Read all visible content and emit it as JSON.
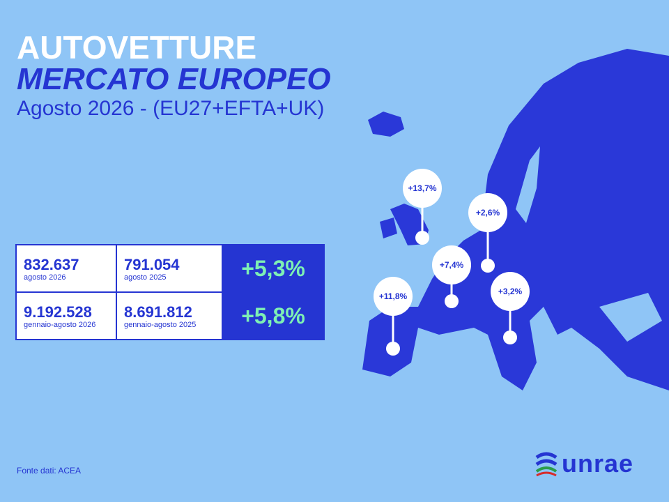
{
  "header": {
    "title": "AUTOVETTURE",
    "subtitle": "MERCATO EUROPEO",
    "period": "Agosto 2026 - (EU27+EFTA+UK)"
  },
  "table": {
    "rows": [
      [
        {
          "value": "832.637",
          "label": "agosto 2026"
        },
        {
          "value": "791.054",
          "label": "agosto 2025"
        },
        "+5,3%"
      ],
      [
        {
          "value": "9.192.528",
          "label": "gennaio-agosto 2026"
        },
        {
          "value": "8.691.812",
          "label": "gennaio-agosto 2025"
        },
        "+5,8%"
      ]
    ]
  },
  "map": {
    "markers": [
      {
        "label": "+13,7%"
      },
      {
        "label": "+2,6%"
      },
      {
        "label": "+7,4%"
      },
      {
        "label": "+11,8%"
      },
      {
        "label": "+3,2%"
      }
    ]
  },
  "footer": {
    "source": "Fonte dati: ACEA",
    "logo": "unrae"
  }
}
